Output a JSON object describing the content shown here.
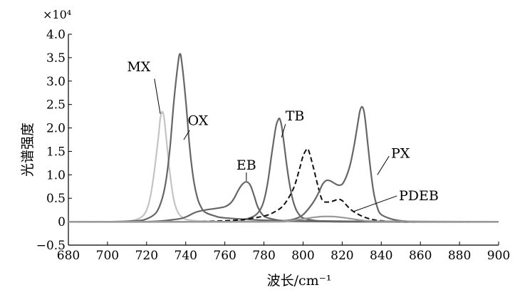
{
  "chart_data": {
    "type": "line",
    "title": "",
    "xlabel": "波长/cm⁻¹",
    "ylabel": "光谱强度",
    "y_multiplier": "×10⁴",
    "xlim": [
      680,
      900
    ],
    "ylim": [
      -0.5,
      4.0
    ],
    "x_ticks": [
      "680",
      "700",
      "720",
      "740",
      "760",
      "780",
      "800",
      "820",
      "840",
      "860",
      "880",
      "900"
    ],
    "y_ticks": [
      "−0.5",
      "0",
      "0.5",
      "1.0",
      "1.5",
      "2.0",
      "2.5",
      "3.0",
      "3.5",
      "4.0"
    ],
    "grid": false,
    "legend": "none",
    "series": [
      {
        "name": "MX",
        "color": "#c4c4c4",
        "style": "solid",
        "x": [
          680,
          700,
          710,
          715,
          718,
          720,
          722,
          724,
          726,
          727,
          728,
          729,
          730,
          732,
          734,
          736,
          738,
          740,
          745,
          750,
          760,
          780,
          800,
          820,
          850,
          900
        ],
        "y": [
          0,
          0,
          0.01,
          0.05,
          0.12,
          0.25,
          0.55,
          1.1,
          1.8,
          2.2,
          2.35,
          2.2,
          1.8,
          1.0,
          0.45,
          0.2,
          0.1,
          0.05,
          0.02,
          0.01,
          0,
          0,
          0,
          0,
          0,
          0
        ]
      },
      {
        "name": "OX",
        "color": "#666666",
        "style": "solid",
        "x": [
          680,
          700,
          715,
          720,
          725,
          728,
          730,
          732,
          734,
          736,
          737,
          738,
          740,
          742,
          744,
          746,
          748,
          750,
          755,
          760,
          780,
          800,
          820,
          850,
          900
        ],
        "y": [
          0,
          0,
          0.02,
          0.06,
          0.2,
          0.5,
          0.9,
          1.6,
          2.6,
          3.35,
          3.58,
          3.4,
          2.6,
          1.6,
          0.9,
          0.5,
          0.3,
          0.2,
          0.12,
          0.08,
          0.03,
          0.02,
          0.01,
          0,
          0
        ]
      },
      {
        "name": "EB",
        "color": "#666666",
        "style": "solid",
        "x": [
          680,
          720,
          735,
          740,
          745,
          750,
          755,
          760,
          763,
          765,
          767,
          769,
          771,
          773,
          775,
          777,
          780,
          785,
          790,
          800,
          820,
          850,
          900
        ],
        "y": [
          0,
          0,
          0.05,
          0.1,
          0.2,
          0.25,
          0.28,
          0.32,
          0.4,
          0.52,
          0.68,
          0.8,
          0.85,
          0.78,
          0.55,
          0.3,
          0.12,
          0.05,
          0.02,
          0.01,
          0,
          0,
          0
        ],
        "label": "EB"
      },
      {
        "name": "TB",
        "color": "#666666",
        "style": "solid",
        "x": [
          680,
          760,
          770,
          775,
          778,
          780,
          782,
          784,
          786,
          787,
          788,
          789,
          790,
          792,
          794,
          796,
          798,
          800,
          805,
          810,
          820,
          850,
          900
        ],
        "y": [
          0,
          0,
          0.05,
          0.12,
          0.25,
          0.45,
          0.85,
          1.45,
          2.0,
          2.15,
          2.2,
          2.05,
          1.75,
          1.1,
          0.6,
          0.3,
          0.15,
          0.08,
          0.03,
          0.01,
          0,
          0,
          0
        ]
      },
      {
        "name": "PDEB",
        "color": "#111111",
        "style": "dashed",
        "x": [
          680,
          740,
          760,
          770,
          780,
          785,
          790,
          795,
          798,
          800,
          802,
          803,
          805,
          808,
          810,
          813,
          816,
          818,
          820,
          822,
          825,
          830,
          835,
          840,
          850,
          860,
          870,
          900
        ],
        "y": [
          0,
          0,
          0.02,
          0.05,
          0.12,
          0.2,
          0.35,
          0.7,
          1.1,
          1.4,
          1.55,
          1.5,
          1.2,
          0.7,
          0.45,
          0.42,
          0.45,
          0.48,
          0.45,
          0.36,
          0.24,
          0.12,
          0.05,
          0.02,
          0,
          0,
          0,
          0
        ]
      },
      {
        "name": "PX",
        "color": "#666666",
        "style": "solid",
        "x": [
          680,
          780,
          790,
          795,
          800,
          805,
          808,
          810,
          812,
          814,
          816,
          818,
          820,
          822,
          824,
          826,
          828,
          829,
          830,
          831,
          832,
          834,
          836,
          838,
          840,
          845,
          850,
          860,
          870,
          900
        ],
        "y": [
          0,
          0,
          0.02,
          0.05,
          0.15,
          0.4,
          0.62,
          0.8,
          0.88,
          0.87,
          0.82,
          0.78,
          0.8,
          0.95,
          1.2,
          1.6,
          2.1,
          2.35,
          2.45,
          2.38,
          2.1,
          1.3,
          0.65,
          0.3,
          0.15,
          0.06,
          0.02,
          0,
          0,
          0
        ]
      },
      {
        "name": "",
        "color": "#9a9a9a",
        "style": "solid",
        "x": [
          680,
          780,
          790,
          795,
          800,
          805,
          810,
          815,
          820,
          825,
          830,
          840,
          900
        ],
        "y": [
          0,
          0,
          0.01,
          0.03,
          0.06,
          0.09,
          0.11,
          0.11,
          0.09,
          0.06,
          0.03,
          0.01,
          0
        ]
      }
    ],
    "annotations": [
      {
        "text": "MX",
        "x": 728
      },
      {
        "text": "OX",
        "x": 737
      },
      {
        "text": "EB",
        "x": 771
      },
      {
        "text": "TB",
        "x": 788
      },
      {
        "text": "PX",
        "x": 830
      },
      {
        "text": "PDEB",
        "x": 820
      }
    ]
  }
}
